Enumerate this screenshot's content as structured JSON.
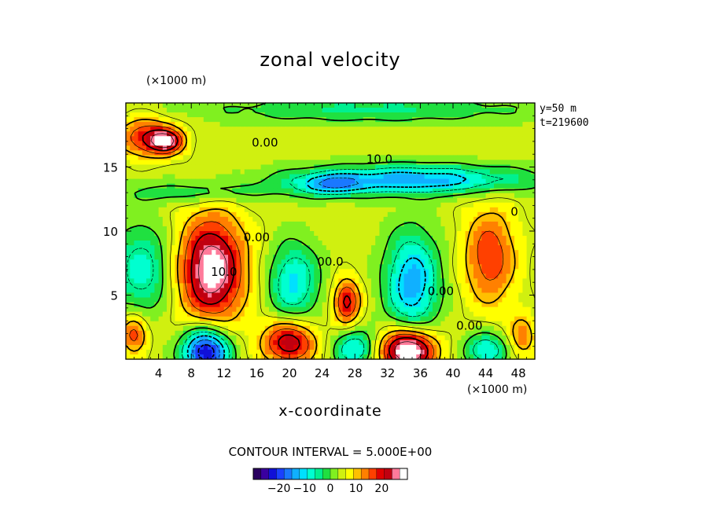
{
  "chart_data": {
    "type": "heatmap",
    "title": "zonal velocity",
    "xlabel": "x-coordinate",
    "x_unit": "(×1000 m)",
    "y_unit": "(×1000 m)",
    "xlim": [
      0,
      50
    ],
    "ylim": [
      0,
      20
    ],
    "x_ticks": [
      4,
      8,
      12,
      16,
      20,
      24,
      28,
      32,
      36,
      40,
      44,
      48
    ],
    "y_ticks": [
      5,
      10,
      15
    ],
    "meta": [
      "y=50  m",
      "t=219600"
    ],
    "contour_interval_text": "CONTOUR INTERVAL = 5.000E+00",
    "contour_labels": [
      {
        "text": "0.00",
        "x": 17,
        "y": 16.6
      },
      {
        "text": "10.0",
        "x": 31,
        "y": 15.3
      },
      {
        "text": "10.0",
        "x": 12,
        "y": 6.5
      },
      {
        "text": "0.00",
        "x": 16,
        "y": 9.2
      },
      {
        "text": "00.0",
        "x": 25,
        "y": 7.3
      },
      {
        "text": "0.00",
        "x": 38.5,
        "y": 5.0
      },
      {
        "text": "0.00",
        "x": 42,
        "y": 2.3
      },
      {
        "text": "0",
        "x": 47.5,
        "y": 11.2
      }
    ],
    "colorbar": {
      "ticks": [
        -20,
        -10,
        0,
        10,
        20
      ],
      "range": [
        -30,
        30
      ],
      "colors": [
        "#2a0060",
        "#3a00a0",
        "#1010d8",
        "#1a40ff",
        "#1a78ff",
        "#10b0ff",
        "#00e0ff",
        "#00ffd0",
        "#00f090",
        "#20e040",
        "#80f020",
        "#d0f010",
        "#ffff00",
        "#ffc000",
        "#ff8000",
        "#ff4000",
        "#e00000",
        "#c00010",
        "#ff7a9a",
        "#ffffff"
      ]
    },
    "features": [
      {
        "kind": "vortex",
        "x": 2.5,
        "y": 17.3,
        "value": 15,
        "rx": 3.5,
        "ry": 1.5
      },
      {
        "kind": "vortex",
        "x": 5,
        "y": 17,
        "value": 18,
        "rx": 2,
        "ry": 0.9
      },
      {
        "kind": "vortex",
        "x": 35,
        "y": 14,
        "value": -18,
        "rx": 14,
        "ry": 1.1
      },
      {
        "kind": "vortex",
        "x": 25,
        "y": 13.6,
        "value": -12,
        "rx": 4,
        "ry": 0.8
      },
      {
        "kind": "vortex",
        "x": 9,
        "y": 13,
        "value": -7,
        "rx": 9,
        "ry": 0.9
      },
      {
        "kind": "vortex",
        "x": 10.5,
        "y": 7,
        "value": 18,
        "rx": 3.5,
        "ry": 3.7
      },
      {
        "kind": "vortex",
        "x": 10.5,
        "y": 7,
        "value": 8,
        "rx": 5,
        "ry": 5
      },
      {
        "kind": "vortex",
        "x": 2,
        "y": 7,
        "value": -12,
        "rx": 3.5,
        "ry": 3.5
      },
      {
        "kind": "vortex",
        "x": 20.5,
        "y": 6,
        "value": -14,
        "rx": 3,
        "ry": 3
      },
      {
        "kind": "vortex",
        "x": 27,
        "y": 4.5,
        "value": 18,
        "rx": 1.6,
        "ry": 1.7
      },
      {
        "kind": "vortex",
        "x": 35,
        "y": 6,
        "value": -18,
        "rx": 3.2,
        "ry": 3.8
      },
      {
        "kind": "vortex",
        "x": 44.5,
        "y": 8,
        "value": 14,
        "rx": 3.2,
        "ry": 3.8
      },
      {
        "kind": "vortex",
        "x": 9.8,
        "y": 0.6,
        "value": -30,
        "rx": 2.8,
        "ry": 1.8
      },
      {
        "kind": "vortex",
        "x": 20,
        "y": 1.3,
        "value": 20,
        "rx": 3.2,
        "ry": 1.7
      },
      {
        "kind": "vortex",
        "x": 28,
        "y": 0.8,
        "value": -14,
        "rx": 2.5,
        "ry": 1.4
      },
      {
        "kind": "vortex",
        "x": 34.5,
        "y": 0.7,
        "value": 30,
        "rx": 3.3,
        "ry": 1.6
      },
      {
        "kind": "vortex",
        "x": 44,
        "y": 0.7,
        "value": -14,
        "rx": 2.5,
        "ry": 1.3
      },
      {
        "kind": "vortex",
        "x": 1,
        "y": 2,
        "value": 14,
        "rx": 1.6,
        "ry": 1.5
      },
      {
        "kind": "vortex",
        "x": 48.5,
        "y": 1.8,
        "value": 10,
        "rx": 1.6,
        "ry": 1.6
      },
      {
        "kind": "vortex",
        "x": 30,
        "y": 19.5,
        "value": -8,
        "rx": 20,
        "ry": 1
      }
    ]
  }
}
